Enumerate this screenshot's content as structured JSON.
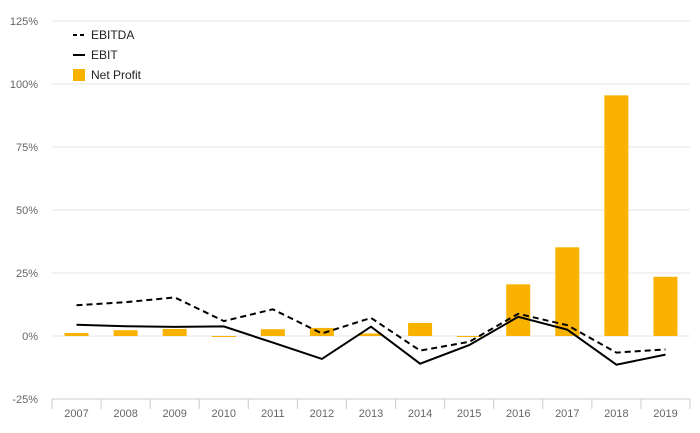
{
  "chart_data": {
    "type": "bar",
    "categories": [
      "2007",
      "2008",
      "2009",
      "2010",
      "2011",
      "2012",
      "2013",
      "2014",
      "2015",
      "2016",
      "2017",
      "2018",
      "2019"
    ],
    "series": [
      {
        "name": "Net Profit",
        "type": "bar",
        "color": "#F9B200",
        "values": [
          1.2,
          2.3,
          2.8,
          -0.3,
          2.7,
          3.2,
          1.0,
          5.2,
          -0.3,
          20.5,
          35.2,
          95.5,
          23.5
        ]
      },
      {
        "name": "EBITDA",
        "type": "line",
        "style": "dashed",
        "color": "#000000",
        "values": [
          12.2,
          13.4,
          15.3,
          5.9,
          10.6,
          1.0,
          7.2,
          -5.8,
          -2.3,
          8.8,
          4.3,
          -6.6,
          -5.3
        ]
      },
      {
        "name": "EBIT",
        "type": "line",
        "style": "solid",
        "color": "#000000",
        "values": [
          4.5,
          3.9,
          3.6,
          3.8,
          -2.6,
          -9.1,
          3.7,
          -11.0,
          -3.6,
          7.6,
          2.5,
          -11.4,
          -7.4
        ]
      }
    ],
    "yticks": [
      125,
      100,
      75,
      50,
      25,
      0,
      -25
    ],
    "ytick_labels": [
      "125%",
      "100%",
      "75%",
      "50%",
      "25%",
      "0%",
      "-25%"
    ],
    "ylim": [
      -25,
      125
    ],
    "grid": true,
    "legend_position": "top-left",
    "legend": [
      {
        "label": "EBITDA",
        "marker": "dashed-line"
      },
      {
        "label": "EBIT",
        "marker": "solid-line"
      },
      {
        "label": "Net Profit",
        "marker": "square"
      }
    ]
  }
}
